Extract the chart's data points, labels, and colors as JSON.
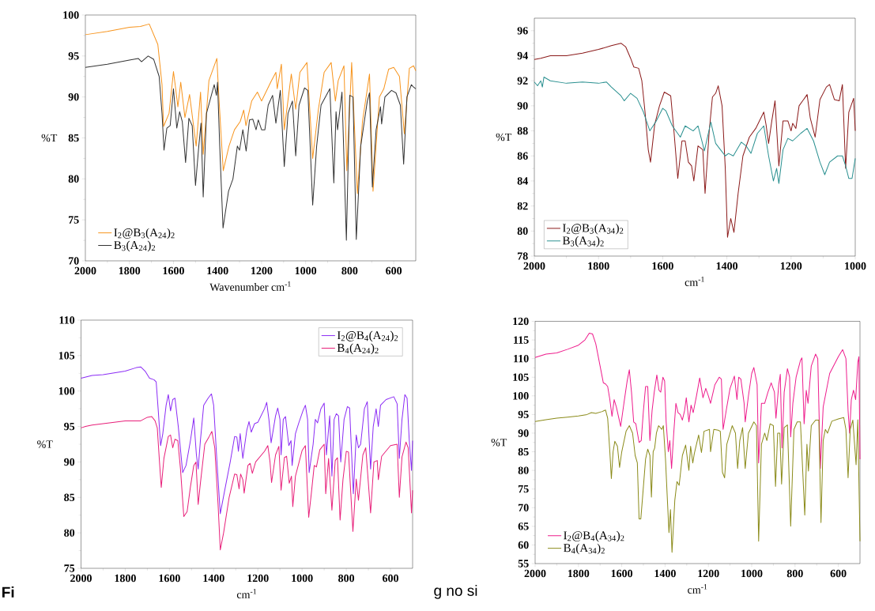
{
  "chart_data": [
    {
      "type": "line",
      "xlabel": "Wavenumber cm$^{-1}$",
      "ylabel": "%T",
      "xlim": [
        2000,
        500
      ],
      "ylim": [
        70,
        100
      ],
      "xticks": [
        2000,
        1800,
        1600,
        1400,
        1200,
        1000,
        800,
        600
      ],
      "yticks": [
        70,
        75,
        80,
        85,
        90,
        95,
        100
      ],
      "legend": "bottom left",
      "marker": "none",
      "line_style": "solid",
      "series": [
        {
          "name": "I$_{2}$@B$_{3}$(A$_{24}$)$_{2}$",
          "color": "#f7941d",
          "x": [
            2000,
            1900,
            1800,
            1750,
            1710,
            1671,
            1652,
            1645,
            1620,
            1600,
            1590,
            1580,
            1567,
            1548,
            1527,
            1497,
            1477,
            1465,
            1439,
            1419,
            1403,
            1394,
            1374,
            1348,
            1323,
            1297,
            1281,
            1271,
            1245,
            1219,
            1200,
            1155,
            1135,
            1129,
            1110,
            1097,
            1065,
            1045,
            1026,
            994,
            968,
            942,
            916,
            884,
            865,
            852,
            826,
            813,
            791,
            765,
            742,
            710,
            694,
            665,
            645,
            623,
            600,
            574,
            552,
            529,
            510,
            500
          ],
          "values": [
            97.6,
            98.0,
            98.5,
            98.6,
            98.9,
            96.4,
            91.5,
            86.4,
            88,
            93.1,
            91,
            88.8,
            91.8,
            87.5,
            90.3,
            84,
            90.6,
            83,
            92,
            93.5,
            94.7,
            90,
            81,
            84,
            86,
            87,
            88.4,
            86.5,
            89.5,
            90.6,
            89.5,
            92,
            93,
            91,
            94,
            86,
            92.8,
            88.5,
            93,
            94.2,
            82.5,
            88.5,
            93,
            94.2,
            89.5,
            92,
            93.8,
            81,
            94.2,
            78.2,
            87,
            92.8,
            78.5,
            90,
            91,
            93.4,
            93.6,
            92.5,
            85.5,
            93.5,
            93.8,
            93.2
          ]
        },
        {
          "name": "B$_{3}$(A$_{24}$)$_{2}$",
          "color": "#333333",
          "x": [
            2000,
            1900,
            1800,
            1760,
            1745,
            1715,
            1690,
            1665,
            1652,
            1643,
            1630,
            1615,
            1600,
            1585,
            1572,
            1560,
            1545,
            1530,
            1515,
            1500,
            1485,
            1475,
            1465,
            1450,
            1430,
            1415,
            1405,
            1400,
            1390,
            1375,
            1350,
            1330,
            1310,
            1300,
            1285,
            1270,
            1255,
            1240,
            1225,
            1215,
            1200,
            1185,
            1170,
            1150,
            1135,
            1115,
            1097,
            1080,
            1060,
            1045,
            1030,
            1005,
            990,
            968,
            950,
            930,
            890,
            872,
            862,
            855,
            835,
            815,
            800,
            785,
            770,
            750,
            720,
            710,
            697,
            680,
            660,
            655,
            640,
            610,
            590,
            570,
            555,
            540,
            520,
            510,
            500
          ],
          "values": [
            93.6,
            94.0,
            94.5,
            94.7,
            94.3,
            95.0,
            94.6,
            92.5,
            88,
            83.5,
            86.2,
            86.5,
            91.0,
            86.2,
            88.2,
            87,
            82,
            87.4,
            86.5,
            79.2,
            84,
            86.8,
            77.8,
            88,
            90,
            91.5,
            90.2,
            91.8,
            84,
            74,
            78.5,
            80,
            84,
            83.5,
            86,
            83.4,
            87.2,
            87.3,
            86,
            87.2,
            86,
            86,
            89,
            90.2,
            86.8,
            90.8,
            81.5,
            88,
            89.5,
            82.8,
            89,
            91.1,
            90.8,
            76.8,
            84,
            89,
            91,
            79.5,
            88.2,
            86,
            90.6,
            72.5,
            90.2,
            90,
            72.6,
            84,
            89.5,
            90.5,
            79,
            86,
            88.8,
            86.7,
            90,
            90.8,
            90.5,
            89,
            81.8,
            90,
            91.5,
            91.2,
            91
          ]
        }
      ]
    },
    {
      "type": "line",
      "xlabel": "cm$^{-1}$",
      "ylabel": "%T",
      "xlim": [
        2000,
        1000
      ],
      "ylim": [
        78,
        97
      ],
      "xticks": [
        2000,
        1800,
        1600,
        1400,
        1200,
        1000
      ],
      "yticks": [
        78,
        80,
        82,
        84,
        86,
        88,
        90,
        92,
        94,
        96
      ],
      "legend": "bottom left",
      "marker": "none",
      "line_style": "solid",
      "series": [
        {
          "name": "I$_{2}$@B$_{3}$(A$_{34}$)$_{2}$",
          "color": "#8b1a1a",
          "x": [
            2000,
            1980,
            1950,
            1900,
            1850,
            1800,
            1760,
            1730,
            1715,
            1700,
            1690,
            1675,
            1665,
            1655,
            1645,
            1638,
            1625,
            1610,
            1595,
            1575,
            1565,
            1553,
            1540,
            1530,
            1520,
            1510,
            1503,
            1490,
            1475,
            1468,
            1455,
            1445,
            1435,
            1427,
            1415,
            1405,
            1398,
            1388,
            1378,
            1365,
            1350,
            1330,
            1310,
            1285,
            1278,
            1270,
            1260,
            1250,
            1238,
            1225,
            1210,
            1200,
            1195,
            1185,
            1175,
            1150,
            1140,
            1125,
            1110,
            1090,
            1080,
            1065,
            1050,
            1040,
            1030,
            1020,
            1005,
            1000
          ],
          "values": [
            93.7,
            93.8,
            94.0,
            94.0,
            94.2,
            94.5,
            94.8,
            95.0,
            94.7,
            93.8,
            93.1,
            93.0,
            92.0,
            89.5,
            86.5,
            85.5,
            88.5,
            90,
            91.1,
            90.8,
            88,
            84.2,
            87.2,
            87.2,
            85.5,
            85.2,
            84.0,
            86.8,
            86.5,
            83.0,
            88,
            90.7,
            91,
            91.6,
            90,
            85,
            79.5,
            81,
            79.9,
            83,
            86,
            87.5,
            88.2,
            89.5,
            88.5,
            87,
            88.8,
            90.4,
            85.2,
            88.8,
            88.8,
            88,
            88.6,
            88.2,
            90,
            90.9,
            89,
            87.5,
            90.5,
            91.5,
            91.7,
            90.5,
            90.4,
            91.7,
            85,
            89.5,
            90.6,
            88
          ]
        },
        {
          "name": "B$_{3}$(A$_{34}$)$_{2}$",
          "color": "#2a9090",
          "x": [
            2000,
            1990,
            1980,
            1975,
            1970,
            1950,
            1900,
            1850,
            1800,
            1775,
            1760,
            1730,
            1720,
            1700,
            1680,
            1660,
            1640,
            1630,
            1620,
            1600,
            1590,
            1570,
            1545,
            1530,
            1505,
            1490,
            1470,
            1450,
            1435,
            1420,
            1405,
            1395,
            1380,
            1355,
            1340,
            1325,
            1305,
            1285,
            1270,
            1255,
            1245,
            1238,
            1225,
            1210,
            1195,
            1170,
            1150,
            1130,
            1110,
            1095,
            1080,
            1055,
            1040,
            1030,
            1020,
            1010,
            1000
          ],
          "values": [
            91.9,
            91.6,
            92.0,
            91.5,
            92.3,
            92.0,
            91.8,
            91.9,
            91.8,
            91.9,
            91.5,
            90.8,
            90.4,
            91.0,
            90.6,
            89.5,
            88.0,
            88.4,
            88.8,
            89.8,
            89.6,
            88.4,
            87.5,
            88.4,
            88.0,
            88.4,
            86.4,
            88.7,
            87,
            86.5,
            86,
            86.2,
            86,
            87.1,
            86.8,
            86.2,
            87.8,
            88.4,
            86,
            84,
            85,
            83.8,
            86.5,
            87.4,
            87.2,
            87.8,
            88.2,
            87.2,
            85.5,
            84.5,
            85.5,
            86.0,
            86.0,
            85.2,
            84.2,
            84.2,
            85.8
          ]
        }
      ]
    },
    {
      "type": "line",
      "xlabel": "cm$^{-1}$",
      "ylabel": "%T",
      "xlim": [
        2000,
        500
      ],
      "ylim": [
        75,
        110
      ],
      "xticks": [
        2000,
        1800,
        1600,
        1400,
        1200,
        1000,
        800,
        600
      ],
      "yticks": [
        75,
        80,
        85,
        90,
        95,
        100,
        105,
        110
      ],
      "legend": "top right",
      "marker": "none",
      "line_style": "solid",
      "annotations": [
        "Fi",
        "g no si"
      ],
      "series": [
        {
          "name": "I$_{2}$@B$_{4}$(A$_{24}$)$_{2}$",
          "color": "#8b2cf5",
          "x": [
            2000,
            1950,
            1900,
            1800,
            1750,
            1730,
            1710,
            1690,
            1670,
            1660,
            1650,
            1640,
            1630,
            1615,
            1605,
            1595,
            1585,
            1575,
            1560,
            1540,
            1525,
            1505,
            1490,
            1478,
            1470,
            1460,
            1445,
            1425,
            1410,
            1400,
            1385,
            1370,
            1350,
            1325,
            1305,
            1295,
            1288,
            1280,
            1268,
            1250,
            1240,
            1230,
            1215,
            1200,
            1170,
            1160,
            1150,
            1140,
            1120,
            1110,
            1100,
            1095,
            1085,
            1075,
            1060,
            1050,
            1045,
            1030,
            1015,
            995,
            985,
            975,
            968,
            950,
            940,
            930,
            915,
            900,
            890,
            875,
            865,
            855,
            845,
            835,
            825,
            810,
            795,
            785,
            768,
            755,
            745,
            735,
            718,
            705,
            690,
            678,
            665,
            655,
            645,
            620,
            585,
            570,
            560,
            548,
            535,
            525,
            515,
            505,
            500
          ],
          "values": [
            101.8,
            102.2,
            102.3,
            102.8,
            103.3,
            103.4,
            102.8,
            101.8,
            101.6,
            101.3,
            97,
            92.3,
            94,
            98,
            99.5,
            97.2,
            98.8,
            99.0,
            95,
            88.5,
            89.5,
            93,
            96.2,
            91,
            89,
            93,
            98,
            99,
            99.6,
            98,
            90,
            82.7,
            86,
            90,
            93.6,
            93.5,
            91.5,
            94,
            90.5,
            94.5,
            95.7,
            94.2,
            95.4,
            95.6,
            97.5,
            98.4,
            96,
            92.7,
            96.5,
            97.6,
            96,
            91,
            96,
            96.4,
            92.3,
            93,
            89.5,
            94,
            95.5,
            97.3,
            98,
            96,
            88.5,
            92.5,
            96,
            95.5,
            97.5,
            98.3,
            91,
            96.5,
            88,
            96,
            96.8,
            96.5,
            90,
            96,
            97.8,
            97.6,
            85.5,
            93.8,
            92,
            92.5,
            97.5,
            98.5,
            89,
            95,
            97.5,
            95,
            98,
            98.8,
            99.2,
            98.2,
            90.5,
            96,
            99.5,
            99,
            93,
            88.8,
            93
          ]
        },
        {
          "name": "B$_{4}$(A$_{24}$)$_{2}$",
          "color": "#e8207a",
          "x": [
            2000,
            1980,
            1950,
            1900,
            1800,
            1730,
            1700,
            1680,
            1665,
            1655,
            1645,
            1637,
            1625,
            1605,
            1595,
            1585,
            1575,
            1562,
            1550,
            1535,
            1520,
            1505,
            1490,
            1480,
            1470,
            1460,
            1440,
            1420,
            1408,
            1395,
            1380,
            1370,
            1355,
            1330,
            1305,
            1295,
            1285,
            1278,
            1268,
            1262,
            1245,
            1235,
            1225,
            1210,
            1170,
            1155,
            1145,
            1138,
            1120,
            1105,
            1095,
            1080,
            1070,
            1058,
            1048,
            1042,
            1030,
            1000,
            985,
            970,
            958,
            945,
            935,
            920,
            900,
            893,
            880,
            865,
            850,
            840,
            828,
            815,
            800,
            790,
            770,
            755,
            745,
            725,
            712,
            690,
            675,
            660,
            655,
            640,
            600,
            570,
            560,
            548,
            530,
            520,
            505,
            500
          ],
          "values": [
            94.8,
            95,
            95.2,
            95.4,
            95.8,
            95.8,
            96.3,
            96.4,
            95.8,
            94.8,
            90,
            86.4,
            90.5,
            93.6,
            93.8,
            92,
            93.2,
            93.0,
            89,
            82.3,
            83,
            86.5,
            89.5,
            90,
            84,
            87,
            92.5,
            93.6,
            94.3,
            92,
            84,
            77.6,
            80,
            85,
            88.3,
            88.2,
            86.2,
            88.3,
            87.5,
            85.6,
            89.5,
            89.8,
            88.4,
            90,
            91.5,
            92.3,
            90,
            87.1,
            91,
            92.2,
            86,
            90.6,
            90.8,
            87,
            88,
            83.7,
            88,
            91.6,
            92.3,
            82.2,
            85.6,
            89.5,
            89.3,
            91.7,
            92.5,
            85.5,
            90.5,
            83.2,
            90.2,
            90.6,
            81.8,
            87.5,
            91.5,
            91.4,
            80.2,
            87.6,
            84.6,
            91,
            92,
            82.8,
            90,
            90.2,
            87.5,
            90.8,
            92.3,
            92.5,
            85,
            90.7,
            92.8,
            92,
            82.8,
            86
          ]
        }
      ]
    },
    {
      "type": "line",
      "xlabel": "cm$^{-1}$",
      "ylabel": "%T",
      "xlim": [
        2000,
        500
      ],
      "ylim": [
        55,
        120
      ],
      "xticks": [
        2000,
        1800,
        1600,
        1400,
        1200,
        1000,
        800,
        600
      ],
      "yticks": [
        55,
        60,
        65,
        70,
        75,
        80,
        85,
        90,
        95,
        100,
        105,
        110,
        115,
        120
      ],
      "legend": "bottom left",
      "marker": "none",
      "line_style": "solid",
      "series": [
        {
          "name": "I$_{2}$@B$_{4}$(A$_{34}$)$_{2}$",
          "color": "#ee1c8c",
          "x": [
            2000,
            1950,
            1900,
            1850,
            1800,
            1770,
            1750,
            1735,
            1720,
            1700,
            1685,
            1675,
            1665,
            1655,
            1645,
            1635,
            1625,
            1605,
            1590,
            1575,
            1565,
            1555,
            1545,
            1535,
            1520,
            1510,
            1500,
            1490,
            1480,
            1470,
            1460,
            1450,
            1438,
            1428,
            1420,
            1410,
            1402,
            1395,
            1385,
            1378,
            1370,
            1360,
            1350,
            1340,
            1330,
            1320,
            1310,
            1302,
            1290,
            1280,
            1270,
            1255,
            1240,
            1225,
            1212,
            1200,
            1190,
            1170,
            1150,
            1140,
            1132,
            1115,
            1100,
            1080,
            1068,
            1060,
            1050,
            1035,
            1030,
            1015,
            1000,
            990,
            975,
            968,
            955,
            940,
            925,
            910,
            895,
            888,
            875,
            868,
            860,
            850,
            835,
            825,
            820,
            810,
            795,
            775,
            768,
            758,
            748,
            740,
            725,
            705,
            695,
            683,
            670,
            640,
            600,
            580,
            565,
            555,
            548,
            540,
            530,
            520,
            510,
            505,
            500
          ],
          "values": [
            110.3,
            111.2,
            111.5,
            112.5,
            113.6,
            115,
            116.8,
            116.6,
            114,
            108,
            103.5,
            103.2,
            102.5,
            99,
            94.5,
            99,
            97,
            91.8,
            98,
            104,
            107,
            101,
            93,
            92.5,
            87.5,
            88,
            96,
            102.5,
            102.5,
            88,
            96,
            101,
            105.6,
            101.5,
            101,
            105,
            104,
            93,
            85,
            88,
            80.5,
            90,
            98,
            95.5,
            95,
            93.5,
            96,
            99.5,
            93,
            97.5,
            95.5,
            100,
            104.8,
            99.5,
            102,
            100,
            98,
            103,
            105,
            104.5,
            91,
            97,
            102,
            105.3,
            99,
            105,
            104.5,
            98,
            93,
            100,
            106,
            107.6,
            103,
            82,
            98,
            98,
            101,
            103.5,
            101,
            94,
            103,
            105.8,
            86,
            101,
            107.3,
            105,
            89,
            98,
            105,
            109.5,
            110.2,
            92.5,
            101.5,
            98,
            108,
            111.2,
            110,
            80.5,
            97,
            106,
            110.5,
            112.4,
            110,
            96,
            90,
            99,
            101.5,
            99,
            109,
            110.5,
            83
          ]
        },
        {
          "name": "B$_{4}$(A$_{34}$)$_{2}$",
          "color": "#8b8b1a",
          "x": [
            2000,
            1950,
            1900,
            1850,
            1800,
            1760,
            1740,
            1720,
            1690,
            1675,
            1665,
            1655,
            1648,
            1640,
            1632,
            1620,
            1610,
            1600,
            1580,
            1565,
            1550,
            1538,
            1528,
            1520,
            1512,
            1505,
            1490,
            1480,
            1470,
            1463,
            1455,
            1448,
            1440,
            1430,
            1415,
            1408,
            1398,
            1390,
            1382,
            1375,
            1368,
            1355,
            1345,
            1335,
            1320,
            1305,
            1290,
            1282,
            1272,
            1265,
            1245,
            1232,
            1220,
            1195,
            1190,
            1175,
            1155,
            1145,
            1135,
            1125,
            1115,
            1090,
            1075,
            1065,
            1055,
            1042,
            1030,
            1015,
            990,
            978,
            968,
            955,
            940,
            930,
            915,
            900,
            890,
            880,
            870,
            862,
            850,
            835,
            820,
            805,
            790,
            775,
            755,
            745,
            738,
            725,
            705,
            690,
            680,
            670,
            660,
            650,
            630,
            600,
            575,
            565,
            555,
            545,
            533,
            525,
            518,
            510,
            500
          ],
          "values": [
            93.1,
            93.6,
            94,
            94.3,
            94.6,
            95,
            95.5,
            95.3,
            95.8,
            96.2,
            94,
            85,
            77.8,
            85,
            87.8,
            86.5,
            80.8,
            85,
            90.5,
            92,
            90,
            84,
            82,
            67,
            67,
            72,
            83,
            85.7,
            84,
            72.8,
            85,
            86,
            90,
            92,
            91,
            92,
            83,
            73,
            63.3,
            69.5,
            58,
            72,
            77,
            76,
            84,
            86.8,
            80,
            86.5,
            82,
            84.5,
            89.5,
            84.8,
            90.5,
            91,
            85,
            91,
            90.8,
            90.5,
            79.5,
            78,
            87,
            92,
            90,
            80.5,
            88,
            91.5,
            80.5,
            90,
            93,
            92,
            61,
            87,
            90,
            88,
            92.5,
            92,
            75.7,
            90,
            90,
            76.3,
            91.5,
            92.2,
            65,
            91,
            93,
            93,
            68,
            87,
            79.8,
            92,
            93.5,
            93.5,
            66,
            88,
            91,
            90,
            93.2,
            93.8,
            94.2,
            91,
            78,
            91,
            93.5,
            87,
            81.5,
            93.6,
            61
          ]
        }
      ]
    }
  ]
}
